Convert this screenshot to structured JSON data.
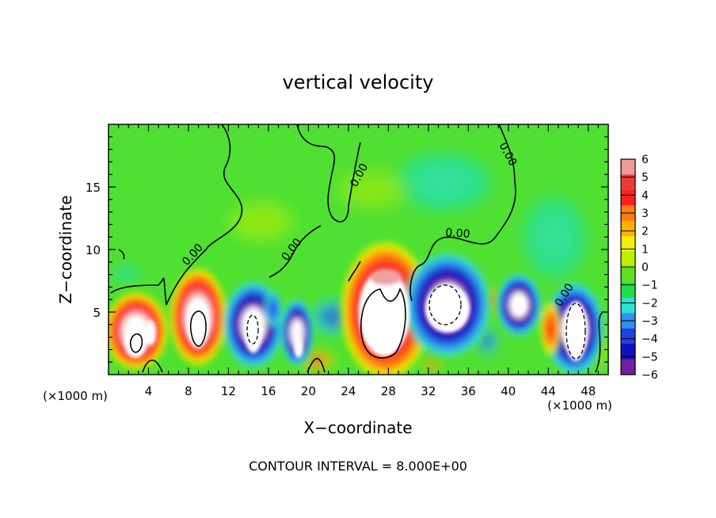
{
  "chart_data": {
    "type": "heatmap",
    "title": "vertical velocity",
    "xlabel": "X−coordinate",
    "ylabel": "Z−coordinate",
    "x_unit_left": "(×1000 m)",
    "x_unit_right": "(×1000 m)",
    "footer": "CONTOUR INTERVAL = 8.000E+00",
    "xlim": [
      0,
      50
    ],
    "ylim": [
      0,
      20
    ],
    "x_ticks": [
      4,
      8,
      12,
      16,
      20,
      24,
      28,
      32,
      36,
      40,
      44,
      48
    ],
    "y_ticks": [
      5,
      10,
      15
    ],
    "contour_label": "0.00",
    "colorbar": {
      "ticks": [
        "6",
        "5",
        "4",
        "3",
        "2",
        "1",
        "0",
        "−1",
        "−2",
        "−3",
        "−4",
        "−5",
        "−6"
      ],
      "colors": [
        "#f09a9a",
        "#f03a3a",
        "#ff2020",
        "#ff7a10",
        "#ffb000",
        "#f0f000",
        "#b8f000",
        "#60e020",
        "#20e040",
        "#30e0d0",
        "#3090f0",
        "#2040e0",
        "#1010c0",
        "#7020a0"
      ]
    },
    "cells": [
      {
        "x": 3,
        "z": 2.8,
        "value": 6
      },
      {
        "x": 9,
        "z": 4.2,
        "value": 6
      },
      {
        "x": 14.5,
        "z": 3.5,
        "value": -6
      },
      {
        "x": 19.5,
        "z": 2.5,
        "value": -6
      },
      {
        "x": 27,
        "z": 4.5,
        "value": 6
      },
      {
        "x": 33.5,
        "z": 5.5,
        "value": -6
      },
      {
        "x": 40.5,
        "z": 5.5,
        "value": -6
      },
      {
        "x": 46.5,
        "z": 3.8,
        "value": -6
      }
    ]
  }
}
